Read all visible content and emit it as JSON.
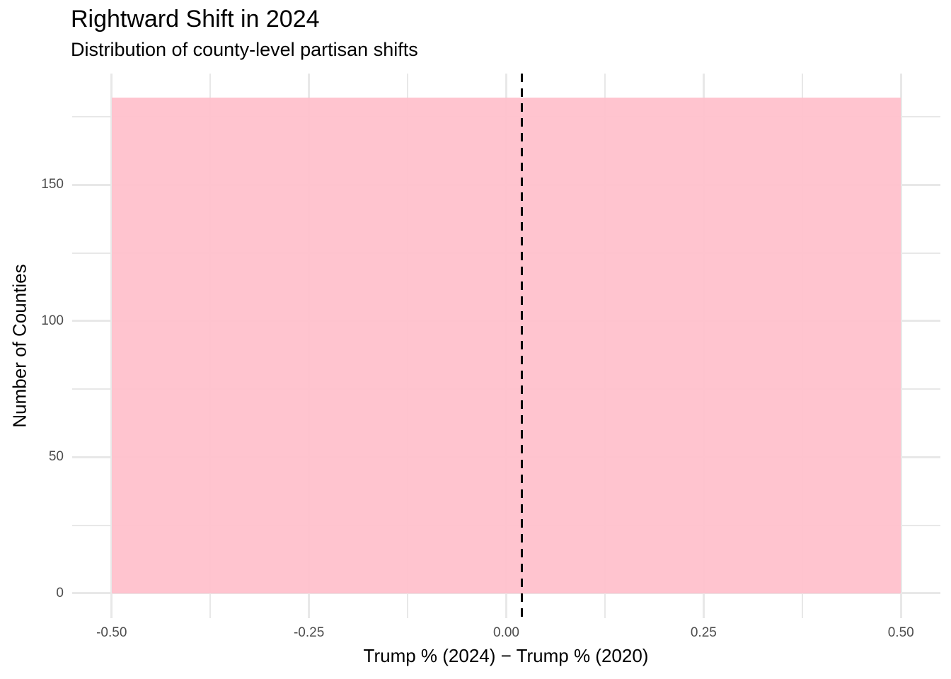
{
  "chart_data": {
    "type": "bar",
    "subtype": "histogram",
    "title": "Rightward Shift in 2024",
    "subtitle": "Distribution of county-level partisan shifts",
    "xlabel": "Trump % (2024) − Trump % (2020)",
    "ylabel": "Number of Counties",
    "xlim": [
      -0.55,
      0.55
    ],
    "ylim": [
      -9.1,
      190.9
    ],
    "x_major_ticks": [
      -0.5,
      -0.25,
      0,
      0.25,
      0.5
    ],
    "x_tick_labels": [
      "-0.50",
      "-0.25",
      "0.00",
      "0.25",
      "0.50"
    ],
    "x_minor_ticks": [
      -0.375,
      -0.125,
      0.125,
      0.375
    ],
    "y_major_ticks": [
      0,
      50,
      100,
      150
    ],
    "y_tick_labels": [
      "0",
      "50",
      "100",
      "150"
    ],
    "y_minor_ticks": [
      25,
      75,
      125,
      175
    ],
    "grid": "major+minor",
    "legend": "none",
    "bars": [
      {
        "x_start": -0.5,
        "x_end": 0.5,
        "count": 182
      }
    ],
    "reference_line": {
      "x": 0.02,
      "orientation": "vertical",
      "style": "dashed",
      "color": "#000000"
    },
    "colors": {
      "bar_fill": "#FFC0CB",
      "bar_opacity": 0.93,
      "grid": "#E8E8E8",
      "tick_label": "#4D4D4D",
      "text": "#000000",
      "background": "#FFFFFF"
    }
  }
}
